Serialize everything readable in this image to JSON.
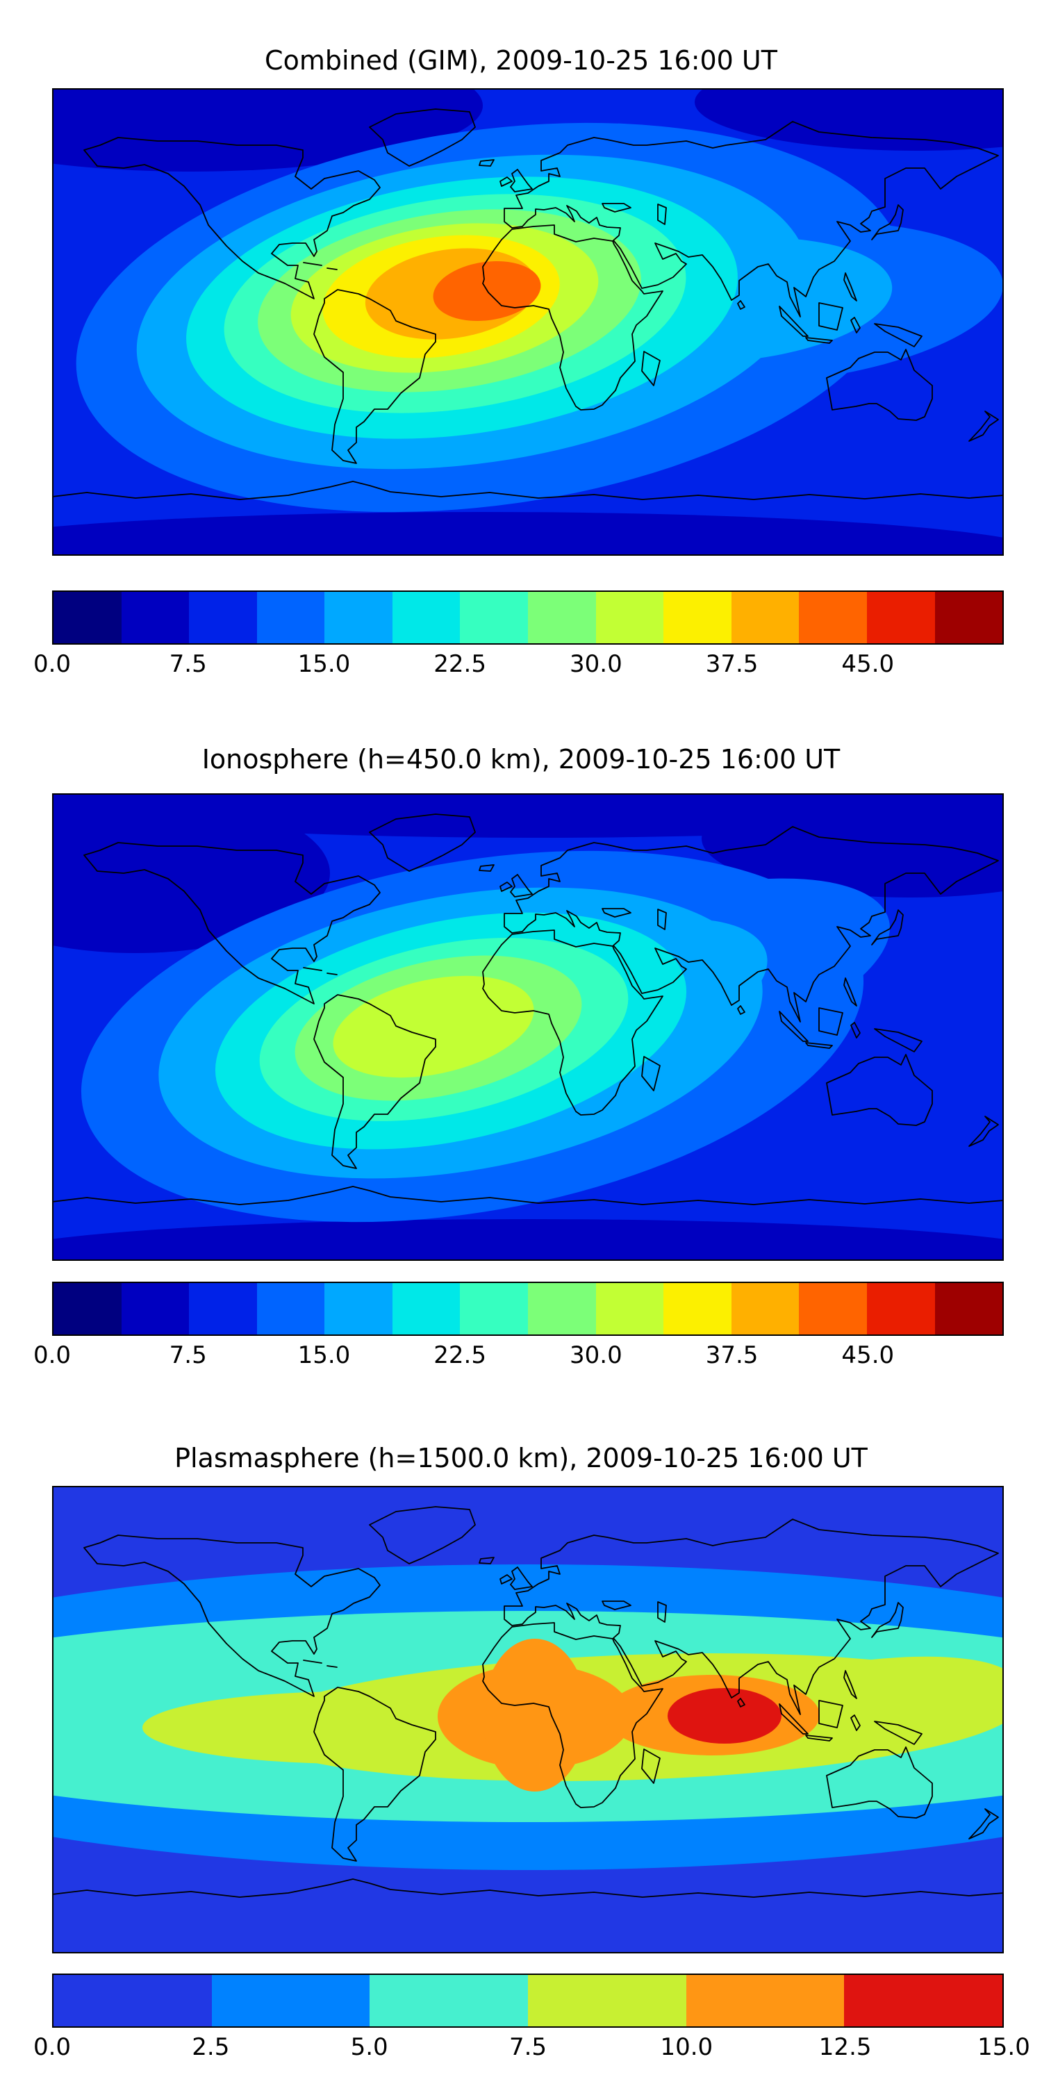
{
  "figure": {
    "background": "#ffffff"
  },
  "panels": [
    {
      "id": "combined",
      "title": "Combined (GIM), 2009-10-25 16:00 UT",
      "colorbar": {
        "range_min": 0,
        "range_max": 52.5,
        "tick_labels": [
          "0.0",
          "7.5",
          "15.0",
          "22.5",
          "30.0",
          "37.5",
          "45.0"
        ],
        "colors": [
          "#000080",
          "#0000c0",
          "#0022e8",
          "#0064ff",
          "#00a8ff",
          "#00e8e8",
          "#36ffc0",
          "#7cff78",
          "#c2ff34",
          "#fcf000",
          "#ffb000",
          "#ff6400",
          "#ea1e00",
          "#9e0000"
        ]
      }
    },
    {
      "id": "ionosphere",
      "title": "Ionosphere (h=450.0 km), 2009-10-25 16:00 UT",
      "colorbar": {
        "range_min": 0,
        "range_max": 52.5,
        "tick_labels": [
          "0.0",
          "7.5",
          "15.0",
          "22.5",
          "30.0",
          "37.5",
          "45.0"
        ],
        "colors": [
          "#000080",
          "#0000c0",
          "#0022e8",
          "#0064ff",
          "#00a8ff",
          "#00e8e8",
          "#36ffc0",
          "#7cff78",
          "#c2ff34",
          "#fcf000",
          "#ffb000",
          "#ff6400",
          "#ea1e00",
          "#9e0000"
        ]
      }
    },
    {
      "id": "plasmasphere",
      "title": "Plasmasphere (h=1500.0 km), 2009-10-25 16:00 UT",
      "colorbar": {
        "range_min": 0,
        "range_max": 15,
        "tick_labels": [
          "0.0",
          "2.5",
          "5.0",
          "7.5",
          "10.0",
          "12.5",
          "15.0"
        ],
        "colors": [
          "#2138e4",
          "#0082ff",
          "#46f0cf",
          "#c8f032",
          "#ff9614",
          "#df1410"
        ]
      }
    }
  ],
  "chart_data": [
    {
      "type": "heatmap",
      "subtype": "filled-contour global map (equirectangular)",
      "title": "Combined (GIM), 2009-10-25 16:00 UT",
      "datetime": "2009-10-25 16:00 UT",
      "map_extent": {
        "lon": [
          -180,
          180
        ],
        "lat": [
          -90,
          90
        ]
      },
      "colorbar_ticks": [
        0.0,
        7.5,
        15.0,
        22.5,
        30.0,
        37.5,
        45.0
      ],
      "value_range": [
        0,
        52.5
      ],
      "approx_contour_step": 3.75,
      "peak": {
        "lon_deg": -5,
        "lat_deg": 8,
        "approx_value": 42,
        "region": "equatorial Atlantic / West Africa / northern South America"
      },
      "low_regions": "dark blue (~0-5) over high latitudes, Arctic and Southern Ocean; blue (~5-10) over Pacific",
      "notes": "cyan/green tongue extends eastward across Indian Ocean and Southeast Asia"
    },
    {
      "type": "heatmap",
      "subtype": "filled-contour global map (equirectangular)",
      "title": "Ionosphere (h=450.0 km), 2009-10-25 16:00 UT",
      "datetime": "2009-10-25 16:00 UT",
      "map_extent": {
        "lon": [
          -180,
          180
        ],
        "lat": [
          -90,
          90
        ]
      },
      "colorbar_ticks": [
        0.0,
        7.5,
        15.0,
        22.5,
        30.0,
        37.5,
        45.0
      ],
      "value_range": [
        0,
        52.5
      ],
      "approx_contour_step": 3.75,
      "peak": {
        "lon_deg": -30,
        "lat_deg": 0,
        "approx_value": 28,
        "region": "tropical South America / South Atlantic"
      },
      "low_regions": "darkest blue (~0-4) over North Pacific and high latitudes",
      "notes": "weaker maximum than combined map; yellow-green core surrounded by cyan/blue rings"
    },
    {
      "type": "heatmap",
      "subtype": "filled-contour global map (equirectangular)",
      "title": "Plasmasphere (h=1500.0 km), 2009-10-25 16:00 UT",
      "datetime": "2009-10-25 16:00 UT",
      "map_extent": {
        "lon": [
          -180,
          180
        ],
        "lat": [
          -90,
          90
        ]
      },
      "colorbar_ticks": [
        0.0,
        2.5,
        5.0,
        7.5,
        10.0,
        12.5,
        15.0
      ],
      "value_range": [
        0,
        15
      ],
      "approx_contour_step": 2.5,
      "peak": {
        "lon_deg": 75,
        "lat_deg": 0,
        "approx_value": 14,
        "region": "Indian Ocean south of India (red core)"
      },
      "low_regions": "dark blue (~0-2.5) poleward of ~50 deg latitude",
      "notes": "horizontal banded structure along the equator: azure, aquamarine and yellow-green belts spanning all longitudes, orange lobes over central Africa and India"
    }
  ]
}
